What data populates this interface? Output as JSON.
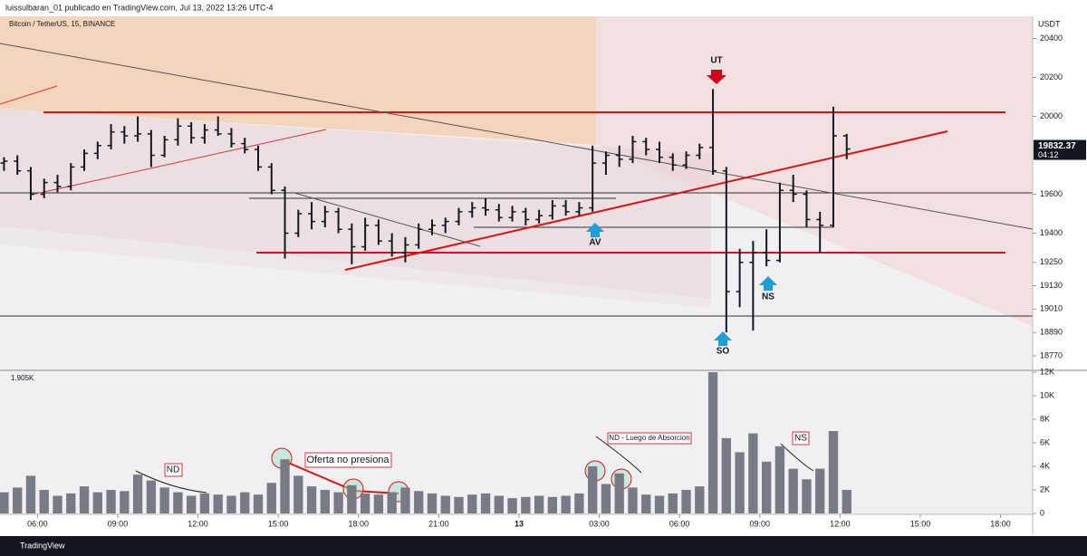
{
  "header": {
    "publisher": "luissulbaran_01 publicado en TradingView.com, Jul 13, 2022 13:26 UTC-4",
    "symbol": "Bitcoin / TetherUS, 15, BINANCE",
    "footer": "TradingView"
  },
  "chart_data": [
    {
      "type": "ohlc",
      "color": "#131722",
      "x": [
        4.75,
        5.25,
        5.75,
        6.25,
        6.75,
        7.25,
        7.75,
        8.25,
        8.75,
        9.25,
        9.75,
        10.25,
        10.75,
        11.25,
        11.75,
        12.25,
        12.75,
        13.25,
        13.75,
        14.25,
        14.75,
        15.25,
        15.75,
        16.25,
        16.75,
        17.25,
        17.75,
        18.25,
        18.75,
        19.25,
        19.75,
        20.25,
        20.75,
        21.25,
        21.75,
        22.25,
        22.75,
        23.25,
        23.75,
        24.25,
        24.75,
        25.25,
        25.75,
        26.25,
        26.75,
        27.25,
        27.75,
        28.25,
        28.75,
        29.25,
        29.75,
        30.25,
        30.75,
        31.25,
        31.75,
        32.25,
        32.75,
        33.25,
        33.75,
        34.25,
        34.75,
        35.25,
        35.75,
        36.25
      ],
      "open": [
        19760,
        19770,
        19720,
        19600,
        19660,
        19640,
        19740,
        19810,
        19850,
        19920,
        19900,
        19910,
        19800,
        19880,
        19950,
        19890,
        19930,
        19910,
        19860,
        19830,
        19740,
        19620,
        19400,
        19500,
        19460,
        19510,
        19420,
        19330,
        19440,
        19360,
        19300,
        19340,
        19420,
        19440,
        19460,
        19510,
        19530,
        19520,
        19480,
        19510,
        19470,
        19490,
        19540,
        19510,
        19530,
        19760,
        19800,
        19780,
        19870,
        19830,
        19790,
        19750,
        19800,
        19840,
        19720,
        19100,
        19250,
        19300,
        19260,
        19620,
        19600,
        19470,
        19440,
        19900
      ],
      "high": [
        19790,
        19800,
        19740,
        19680,
        19700,
        19760,
        19830,
        19870,
        19960,
        19950,
        20000,
        19930,
        19900,
        19990,
        19970,
        19960,
        20000,
        19940,
        19890,
        19850,
        19760,
        19640,
        19520,
        19560,
        19540,
        19530,
        19450,
        19480,
        19470,
        19400,
        19380,
        19450,
        19470,
        19480,
        19530,
        19560,
        19580,
        19550,
        19540,
        19530,
        19520,
        19570,
        19570,
        19560,
        19850,
        19820,
        19850,
        19900,
        19890,
        19870,
        19810,
        19820,
        19860,
        20140,
        19740,
        19320,
        19360,
        19420,
        19660,
        19700,
        19620,
        19510,
        20050,
        19910
      ],
      "low": [
        19720,
        19700,
        19570,
        19580,
        19610,
        19620,
        19720,
        19780,
        19830,
        19860,
        19870,
        19740,
        19790,
        19850,
        19860,
        19860,
        19900,
        19840,
        19810,
        19720,
        19600,
        19270,
        19380,
        19420,
        19430,
        19400,
        19240,
        19310,
        19340,
        19280,
        19250,
        19320,
        19390,
        19400,
        19440,
        19480,
        19490,
        19460,
        19460,
        19440,
        19450,
        19470,
        19490,
        19490,
        19510,
        19700,
        19740,
        19760,
        19800,
        19760,
        19720,
        19730,
        19780,
        19700,
        18890,
        19020,
        18900,
        19230,
        19250,
        19560,
        19430,
        19300,
        19430,
        19780
      ],
      "close": [
        19770,
        19720,
        19600,
        19660,
        19640,
        19740,
        19810,
        19850,
        19920,
        19900,
        19910,
        19800,
        19880,
        19950,
        19890,
        19930,
        19910,
        19860,
        19830,
        19740,
        19620,
        19400,
        19500,
        19460,
        19510,
        19420,
        19330,
        19440,
        19360,
        19300,
        19340,
        19420,
        19440,
        19460,
        19510,
        19530,
        19520,
        19480,
        19510,
        19470,
        19490,
        19540,
        19510,
        19530,
        19760,
        19800,
        19780,
        19870,
        19830,
        19790,
        19750,
        19800,
        19840,
        19720,
        19100,
        19250,
        19300,
        19260,
        19620,
        19600,
        19470,
        19440,
        19900,
        19832.37
      ],
      "xlim": [
        4.6,
        43.2
      ],
      "xticks": [
        {
          "value": 6,
          "label": "06:00"
        },
        {
          "value": 9,
          "label": "09:00"
        },
        {
          "value": 12,
          "label": "12:00"
        },
        {
          "value": 15,
          "label": "15:00"
        },
        {
          "value": 18,
          "label": "18:00"
        },
        {
          "value": 21,
          "label": "21:00"
        },
        {
          "value": 24,
          "label": "13"
        },
        {
          "value": 27,
          "label": "03:00"
        },
        {
          "value": 30,
          "label": "06:00"
        },
        {
          "value": 33,
          "label": "09:00"
        },
        {
          "value": 36,
          "label": "12:00"
        },
        {
          "value": 39,
          "label": "15:00"
        },
        {
          "value": 42,
          "label": "18:00"
        }
      ],
      "ylim": [
        18700,
        20514
      ],
      "yticks": [
        20400,
        20200,
        20000,
        19600,
        19400,
        19250,
        19130,
        19010,
        18890,
        18770
      ],
      "y_unit": "USDT",
      "last_price": 19832.37,
      "countdown": "04:12",
      "annotations": [
        "UT",
        "AV",
        "SO",
        "NS"
      ]
    },
    {
      "type": "bar",
      "color": "#787b86",
      "x": [
        4.75,
        5.25,
        5.75,
        6.25,
        6.75,
        7.25,
        7.75,
        8.25,
        8.75,
        9.25,
        9.75,
        10.25,
        10.75,
        11.25,
        11.75,
        12.25,
        12.75,
        13.25,
        13.75,
        14.25,
        14.75,
        15.25,
        15.75,
        16.25,
        16.75,
        17.25,
        17.75,
        18.25,
        18.75,
        19.25,
        19.75,
        20.25,
        20.75,
        21.25,
        21.75,
        22.25,
        22.75,
        23.25,
        23.75,
        24.25,
        24.75,
        25.25,
        25.75,
        26.25,
        26.75,
        27.25,
        27.75,
        28.25,
        28.75,
        29.25,
        29.75,
        30.25,
        30.75,
        31.25,
        31.75,
        32.25,
        32.75,
        33.25,
        33.75,
        34.25,
        34.75,
        35.25,
        35.75,
        36.25
      ],
      "values": [
        1800,
        2200,
        3200,
        2000,
        1500,
        1700,
        2300,
        1800,
        2000,
        1900,
        3300,
        2800,
        2200,
        1800,
        1500,
        1700,
        1600,
        1500,
        1800,
        1600,
        2600,
        4600,
        3200,
        2300,
        2000,
        1800,
        2400,
        1700,
        1600,
        1800,
        2200,
        1900,
        1700,
        1500,
        1400,
        1600,
        1700,
        1500,
        1300,
        1400,
        1500,
        1400,
        1500,
        1700,
        4000,
        2500,
        3400,
        2200,
        1600,
        1500,
        1700,
        2000,
        2300,
        12000,
        6400,
        5200,
        6800,
        4400,
        5700,
        3800,
        2900,
        3800,
        7000,
        2000
      ],
      "xlim": [
        4.6,
        43.2
      ],
      "ylim": [
        0,
        12000
      ],
      "yticks": [
        0,
        {
          "value": 2000,
          "label": "2K"
        },
        {
          "value": 4000,
          "label": "4K"
        },
        {
          "value": 6000,
          "label": "6K"
        },
        {
          "value": 8000,
          "label": "8K"
        },
        {
          "value": 10000,
          "label": "10K"
        },
        {
          "value": 12000,
          "label": "12K"
        }
      ],
      "current": "1.905K",
      "annotations": [
        "ND",
        "Oferta no presiona",
        "ND - Luego de Absorcion",
        "NS"
      ]
    }
  ]
}
